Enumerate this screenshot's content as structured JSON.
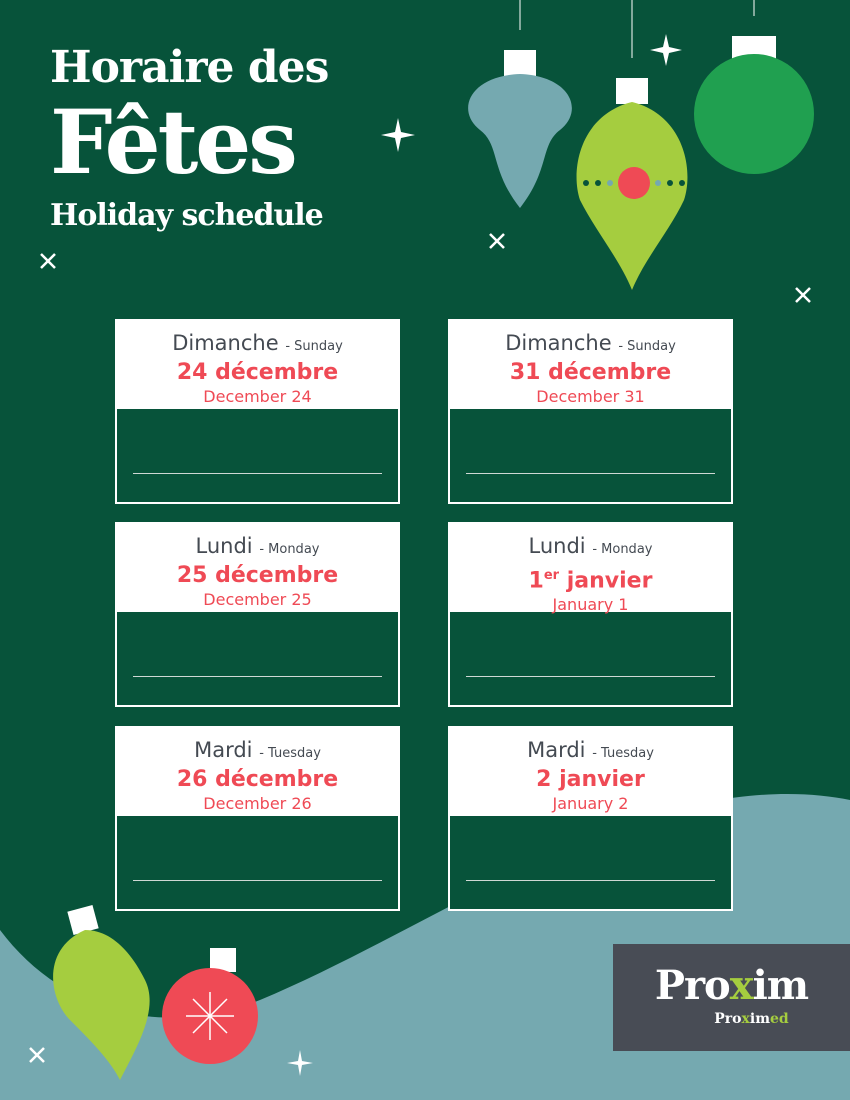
{
  "header": {
    "line1": "Horaire des",
    "line2": "Fêtes",
    "line3": "Holiday schedule"
  },
  "colors": {
    "background": "#07533a",
    "accent_red": "#ef4a55",
    "lime": "#a5cd3f",
    "teal": "#75a9b0",
    "logo_bg": "#484c55"
  },
  "days": [
    {
      "fr_day": "Dimanche",
      "en_day": "- Sunday",
      "fr_date": "24 décembre",
      "fr_sup": "",
      "en_date": "December 24"
    },
    {
      "fr_day": "Dimanche",
      "en_day": "- Sunday",
      "fr_date": "31 décembre",
      "fr_sup": "",
      "en_date": "December 31"
    },
    {
      "fr_day": "Lundi",
      "en_day": "- Monday",
      "fr_date": "25 décembre",
      "fr_sup": "",
      "en_date": "December 25"
    },
    {
      "fr_day": "Lundi",
      "en_day": "- Monday",
      "fr_date_pre": "1",
      "fr_sup": "er",
      "fr_date": " janvier",
      "en_date": "January 1"
    },
    {
      "fr_day": "Mardi",
      "en_day": "- Tuesday",
      "fr_date": "26 décembre",
      "fr_sup": "",
      "en_date": "December 26"
    },
    {
      "fr_day": "Mardi",
      "en_day": "- Tuesday",
      "fr_date": "2 janvier",
      "fr_sup": "",
      "en_date": "January 2"
    }
  ],
  "logo": {
    "main_pre": "Pro",
    "main_x": "x",
    "main_post": "im",
    "sub_pre": "Pro",
    "sub_x": "x",
    "sub_mid": "im",
    "sub_post": "ed"
  }
}
